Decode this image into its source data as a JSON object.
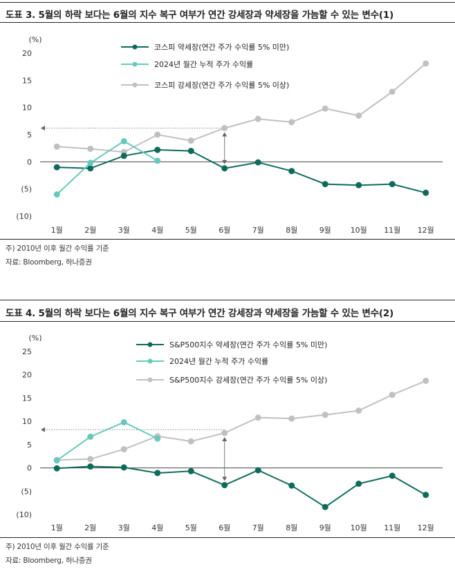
{
  "figures": [
    {
      "title": "도표 3. 5월의 하락 보다는 6월의 지수 복구 여부가 연간 강세장과 약세장을 가늠할 수 있는 변수(1)",
      "note1": "주) 2010년 이후 월간 수익률 기준",
      "note2": "자료: Bloomberg, 하나증권"
    },
    {
      "title": "도표 4. 5월의 하락 보다는 6월의 지수 복구 여부가 연간 강세장과 약세장을 가늠할 수 있는 변수(2)",
      "note1": "주) 2010년 이후 월간 수익률 기준",
      "note2": "자료: Bloomberg, 하나증권"
    }
  ],
  "chart_data": [
    {
      "type": "line",
      "unit_label": "(%)",
      "categories": [
        "1월",
        "2월",
        "3월",
        "4월",
        "5월",
        "6월",
        "7월",
        "8월",
        "9월",
        "10월",
        "11월",
        "12월"
      ],
      "ylim": [
        -10,
        20
      ],
      "yticks": [
        20,
        15,
        10,
        5,
        0,
        -5,
        -10
      ],
      "ytick_labels": [
        "20",
        "15",
        "10",
        "5",
        "0",
        "(5)",
        "(10)"
      ],
      "grid": false,
      "legend_position": "top-center",
      "reference_line": 6.2,
      "series": [
        {
          "name": "코스피 약세장(연간 주가 수익률 5% 미만)",
          "color": "#0d6b5c",
          "values": [
            -1.0,
            -1.2,
            1.1,
            2.2,
            2.0,
            -1.2,
            -0.1,
            -1.7,
            -4.1,
            -4.3,
            -4.1,
            -5.7
          ]
        },
        {
          "name": "2024년 월간 누적 주가 수익률",
          "color": "#66c9bd",
          "values": [
            -6.0,
            -0.2,
            3.8,
            0.2,
            null,
            null,
            null,
            null,
            null,
            null,
            null,
            null
          ]
        },
        {
          "name": "코스피 강세장(연간 주가 수익률 5% 이상)",
          "color": "#c0c0c0",
          "values": [
            2.8,
            2.4,
            1.8,
            5.0,
            3.9,
            6.2,
            7.9,
            7.3,
            9.8,
            8.5,
            12.9,
            18.1
          ]
        }
      ]
    },
    {
      "type": "line",
      "unit_label": "(%)",
      "categories": [
        "1월",
        "2월",
        "3월",
        "4월",
        "5월",
        "6월",
        "7월",
        "8월",
        "9월",
        "10월",
        "11월",
        "12월"
      ],
      "ylim": [
        -10,
        25
      ],
      "yticks": [
        25,
        20,
        15,
        10,
        5,
        0,
        -5,
        -10
      ],
      "ytick_labels": [
        "25",
        "20",
        "15",
        "10",
        "5",
        "0",
        "(5)",
        "(10)"
      ],
      "grid": false,
      "legend_position": "top-center",
      "reference_line": 8.2,
      "series": [
        {
          "name": "S&P500지수 약세장(연간 주가 수익률 5% 미만)",
          "color": "#0d6b5c",
          "values": [
            -0.1,
            0.3,
            0.1,
            -1.1,
            -0.7,
            -3.7,
            -0.5,
            -3.8,
            -8.4,
            -3.4,
            -1.7,
            -5.8
          ]
        },
        {
          "name": "2024년 월간 누적 주가 수익률",
          "color": "#66c9bd",
          "values": [
            1.6,
            6.7,
            9.8,
            6.3,
            null,
            null,
            null,
            null,
            null,
            null,
            null,
            null
          ]
        },
        {
          "name": "S&P500지수 강세장(연간 주가 수익률 5% 이상)",
          "color": "#c0c0c0",
          "values": [
            1.7,
            1.9,
            4.0,
            6.8,
            5.7,
            7.5,
            10.8,
            10.6,
            11.4,
            12.3,
            15.7,
            18.7
          ]
        }
      ]
    }
  ]
}
